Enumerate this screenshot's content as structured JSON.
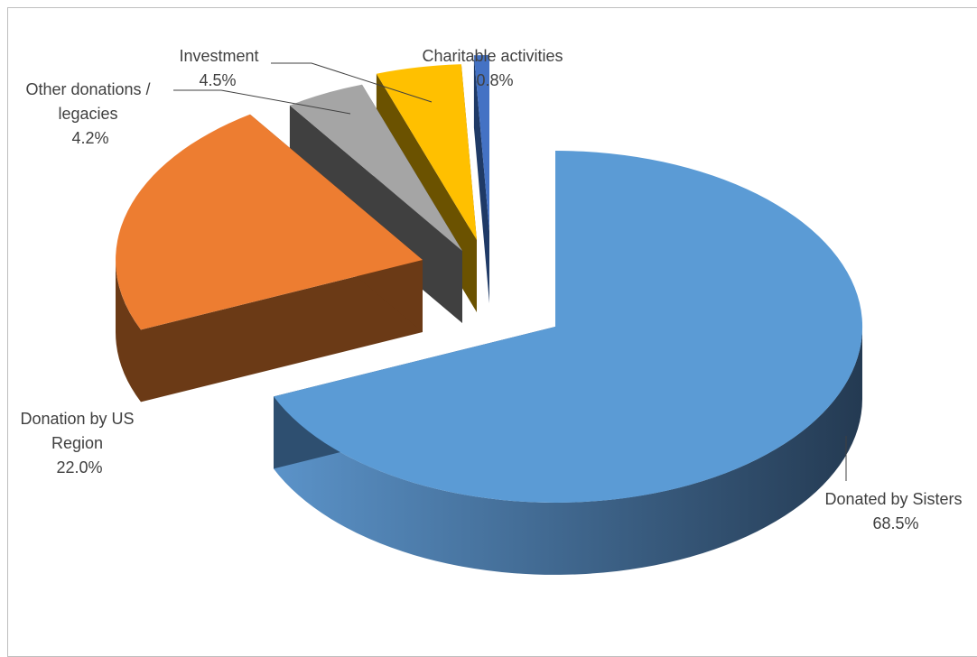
{
  "chart_data": {
    "type": "pie",
    "style": "3d-exploded",
    "slices": [
      {
        "label": "Donated by Sisters",
        "value": 68.5,
        "value_label": "68.5%",
        "color": "#5b9bd5",
        "side_color": "#2e4f70"
      },
      {
        "label": "Donation by US Region",
        "value": 22.0,
        "value_label": "22.0%",
        "color": "#ed7d31",
        "side_color": "#6b3a16"
      },
      {
        "label": "Other donations / legacies",
        "value": 4.2,
        "value_label": "4.2%",
        "color": "#a5a5a5",
        "side_color": "#404040"
      },
      {
        "label": "Investment",
        "value": 4.5,
        "value_label": "4.5%",
        "color": "#ffc000",
        "side_color": "#6b5200"
      },
      {
        "label": "Charitable activities",
        "value": 0.8,
        "value_label": "0.8%",
        "color": "#4472c4",
        "side_color": "#1f3a66"
      }
    ],
    "label_lines": {
      "sisters": [
        "Donated by Sisters",
        "68.5%"
      ],
      "region": [
        "Donation by US",
        "Region",
        "22.0%"
      ],
      "other": [
        "Other donations /",
        "legacies",
        "4.2%"
      ],
      "investment": [
        "Investment",
        "4.5%"
      ],
      "charitable": [
        "Charitable activities",
        "0.8%"
      ]
    },
    "legend": "none"
  }
}
